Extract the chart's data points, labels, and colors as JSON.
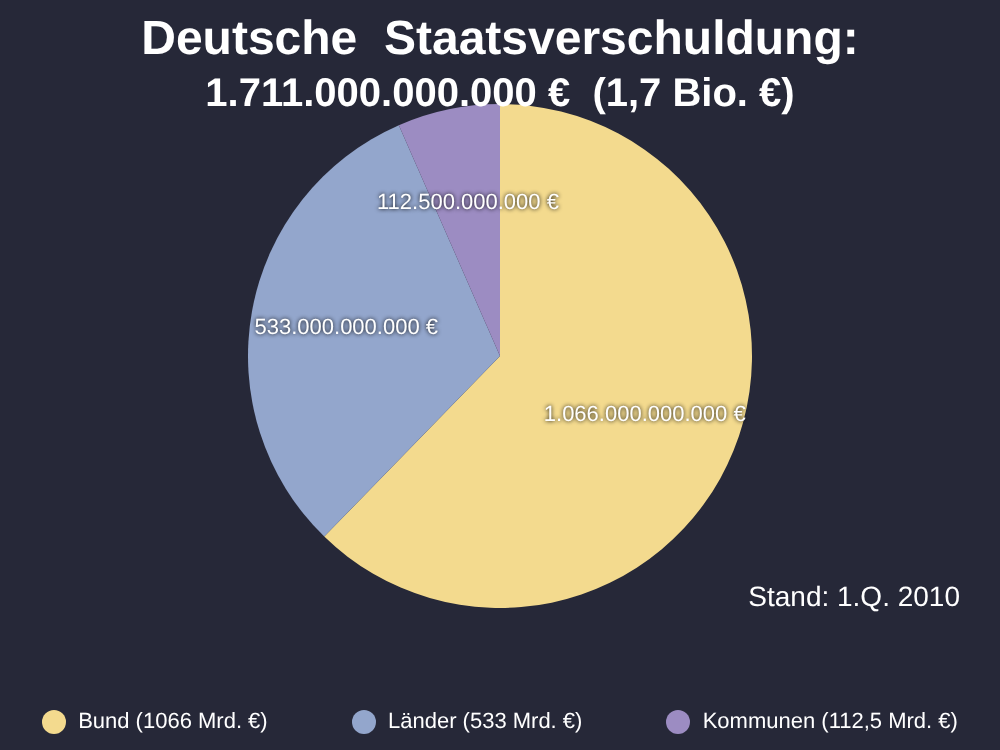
{
  "chart_data": {
    "type": "pie",
    "title": "Deutsche  Staatsverschuldung:",
    "subtitle": "1.711.000.000.000 €  (1,7 Bio. €)",
    "categories": [
      "Bund (1066 Mrd. €)",
      "Länder (533 Mrd. €)",
      "Kommunen (112,5 Mrd. €)"
    ],
    "values": [
      1066000000000,
      533000000000,
      112500000000
    ],
    "colors": [
      "#f3da8e",
      "#93a6cc",
      "#9c8cc2"
    ],
    "value_labels": [
      "1.066.000.000.000 €",
      "533.000.000.000 €",
      "112.500.000.000 €"
    ],
    "annotations": [
      "Stand: 1.Q. 2010"
    ],
    "legend": "bottom"
  }
}
